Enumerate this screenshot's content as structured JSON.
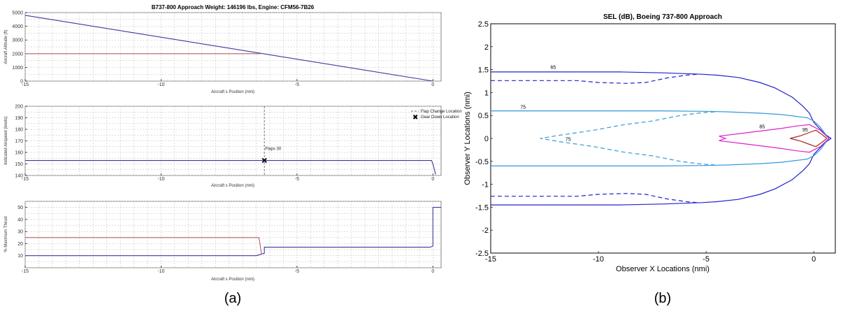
{
  "figure_labels": {
    "a": "(a)",
    "b": "(b)"
  },
  "colors": {
    "blue": "#3a3aa0",
    "red": "#b06060",
    "light_blue": "#3399dd",
    "dark_blue": "#2222cc",
    "magenta": "#dd22cc",
    "dark_red": "#aa2222"
  },
  "chart_data": [
    {
      "type": "line",
      "title": "B737-800 Approach Weight: 146196 lbs, Engine: CFM56-7B26",
      "xlabel": "Aircraft s Position (nmi)",
      "ylabel": "Aircraft Altitude (ft)",
      "xlim": [
        -15,
        0.3
      ],
      "ylim": [
        0,
        5000
      ],
      "xticks": [
        -15,
        -10,
        -5,
        0
      ],
      "yticks": [
        0,
        1000,
        2000,
        3000,
        4000,
        5000
      ],
      "grid": true,
      "series": [
        {
          "color": "#3a3aa0",
          "x": [
            -15,
            0
          ],
          "y": [
            4800,
            0
          ]
        },
        {
          "color": "#b06060",
          "x": [
            -15,
            -6.3
          ],
          "y": [
            2000,
            2000
          ]
        }
      ]
    },
    {
      "type": "line",
      "title": "",
      "xlabel": "Aircraft s Position (nmi)",
      "ylabel": "Indicated Airspeed (knots)",
      "xlim": [
        -15,
        0.3
      ],
      "ylim": [
        140,
        200
      ],
      "xticks": [
        -15,
        -10,
        -5,
        0
      ],
      "yticks": [
        140,
        150,
        160,
        170,
        180,
        190,
        200
      ],
      "grid": true,
      "legend": [
        "Flap Change Location",
        "Gear Down Location"
      ],
      "legend_position": "top-right",
      "annotations": [
        {
          "text": "Flaps 30",
          "x": -6.2,
          "y": 156
        }
      ],
      "flap_change_x": -6.2,
      "gear_down": {
        "x": -6.2,
        "y": 153
      },
      "series": [
        {
          "color": "#3a3aa0",
          "x": [
            -15,
            -0.05,
            0,
            0.1
          ],
          "y": [
            153,
            153,
            150,
            141
          ]
        }
      ]
    },
    {
      "type": "line",
      "title": "",
      "xlabel": "Aircraft s Position (nmi)",
      "ylabel": "% Maximum Thrust",
      "xlim": [
        -15,
        0.3
      ],
      "ylim": [
        0,
        55
      ],
      "xticks": [
        -15,
        -10,
        -5,
        0
      ],
      "yticks": [
        10,
        20,
        30,
        40,
        50
      ],
      "grid": true,
      "series": [
        {
          "color": "#3a3aa0",
          "x": [
            -15,
            -6.5,
            -6.2,
            -6.2,
            -0.1,
            0,
            0,
            0.3
          ],
          "y": [
            10,
            10,
            12,
            17,
            17,
            18,
            50,
            50
          ]
        },
        {
          "color": "#b06060",
          "x": [
            -15,
            -6.4,
            -6.3
          ],
          "y": [
            25,
            25,
            11
          ]
        }
      ]
    },
    {
      "type": "line",
      "title": "SEL (dB), Boeing 737-800 Approach",
      "xlabel": "Observer X Locations (nmi)",
      "ylabel": "Observer Y Locations (nmi)",
      "xlim": [
        -15,
        1
      ],
      "ylim": [
        -2.5,
        2.5
      ],
      "xticks": [
        -15,
        -10,
        -5,
        0
      ],
      "yticks": [
        -2.5,
        -2,
        -1.5,
        -1,
        -0.5,
        0,
        0.5,
        1,
        1.5,
        2,
        2.5
      ],
      "grid": false,
      "contour_labels": [
        {
          "text": "65",
          "x": -12.1,
          "y": 1.52
        },
        {
          "text": "75",
          "x": -13.5,
          "y": 0.65
        },
        {
          "text": "75",
          "x": -11.4,
          "y": -0.05
        },
        {
          "text": "85",
          "x": -2.4,
          "y": 0.22
        },
        {
          "text": "95",
          "x": -0.4,
          "y": 0.15
        }
      ],
      "series": [
        {
          "color": "#2222cc",
          "x": [
            -15,
            -9,
            -7,
            -5.2,
            -4.5,
            -3.5,
            -2.5,
            -1.8,
            -1,
            -0.5,
            -0.2,
            0,
            0.3,
            0.5,
            0.8,
            0.5,
            0.3,
            0,
            -0.2,
            -0.5,
            -1,
            -1.8,
            -2.5,
            -3.5,
            -4.5,
            -5.2,
            -7,
            -9,
            -15
          ],
          "y": [
            1.45,
            1.45,
            1.43,
            1.4,
            1.38,
            1.33,
            1.22,
            1.1,
            0.9,
            0.7,
            0.55,
            0.35,
            0.2,
            0.1,
            0,
            -0.1,
            -0.2,
            -0.35,
            -0.55,
            -0.7,
            -0.9,
            -1.1,
            -1.22,
            -1.33,
            -1.38,
            -1.4,
            -1.43,
            -1.45,
            -1.45
          ]
        },
        {
          "color": "#2222cc",
          "dashed": true,
          "x": [
            -15,
            -11,
            -10,
            -8.7,
            -7.8,
            -6.8,
            -5.9,
            -5.4
          ],
          "y": [
            1.26,
            1.26,
            1.22,
            1.2,
            1.22,
            1.32,
            1.38,
            1.4
          ]
        },
        {
          "color": "#2222cc",
          "dashed": true,
          "x": [
            -15,
            -11,
            -10,
            -8.7,
            -7.8,
            -6.8,
            -5.9,
            -5.4
          ],
          "y": [
            -1.26,
            -1.26,
            -1.22,
            -1.2,
            -1.22,
            -1.32,
            -1.38,
            -1.4
          ]
        },
        {
          "color": "#3399dd",
          "x": [
            -15,
            -7,
            -5,
            -4,
            -2.5,
            -1.5,
            -0.8,
            -0.3,
            0,
            0.3,
            0.5,
            0.7,
            0.5,
            0.3,
            0,
            -0.3,
            -0.8,
            -1.5,
            -2.5,
            -4,
            -5,
            -7,
            -15
          ],
          "y": [
            0.6,
            0.6,
            0.59,
            0.58,
            0.55,
            0.52,
            0.48,
            0.45,
            0.38,
            0.25,
            0.12,
            0,
            -0.12,
            -0.25,
            -0.38,
            -0.45,
            -0.48,
            -0.52,
            -0.55,
            -0.58,
            -0.59,
            -0.6,
            -0.6
          ]
        },
        {
          "color": "#3399dd",
          "dashed": true,
          "x": [
            -4.6,
            -5.2,
            -6.2,
            -7.5,
            -8.8,
            -10.2,
            -11.8,
            -12.7,
            -11.8,
            -10.2,
            -8.8,
            -7.5,
            -6.2,
            -5.2,
            -4.6
          ],
          "y": [
            0.58,
            0.56,
            0.5,
            0.38,
            0.3,
            0.18,
            0.07,
            0,
            -0.07,
            -0.18,
            -0.3,
            -0.38,
            -0.5,
            -0.56,
            -0.58
          ]
        },
        {
          "color": "#dd22cc",
          "x": [
            -4.4,
            -3.5,
            -2.5,
            -1.5,
            -0.8,
            -0.2,
            0.3,
            0.7,
            0.3,
            -0.2,
            -0.8,
            -1.5,
            -2.5,
            -3.5,
            -4.4,
            -4.1,
            -4.4
          ],
          "y": [
            0.05,
            0.1,
            0.16,
            0.22,
            0.27,
            0.3,
            0.18,
            0,
            -0.18,
            -0.3,
            -0.27,
            -0.22,
            -0.16,
            -0.1,
            -0.05,
            0,
            0.05
          ]
        },
        {
          "color": "#aa2222",
          "x": [
            -1.1,
            -0.6,
            -0.2,
            0.1,
            0.4,
            0.6,
            0.4,
            0.1,
            -0.2,
            -0.6,
            -1.1
          ],
          "y": [
            0,
            0.06,
            0.13,
            0.18,
            0.08,
            0,
            -0.08,
            -0.18,
            -0.13,
            -0.06,
            0
          ]
        }
      ]
    }
  ]
}
